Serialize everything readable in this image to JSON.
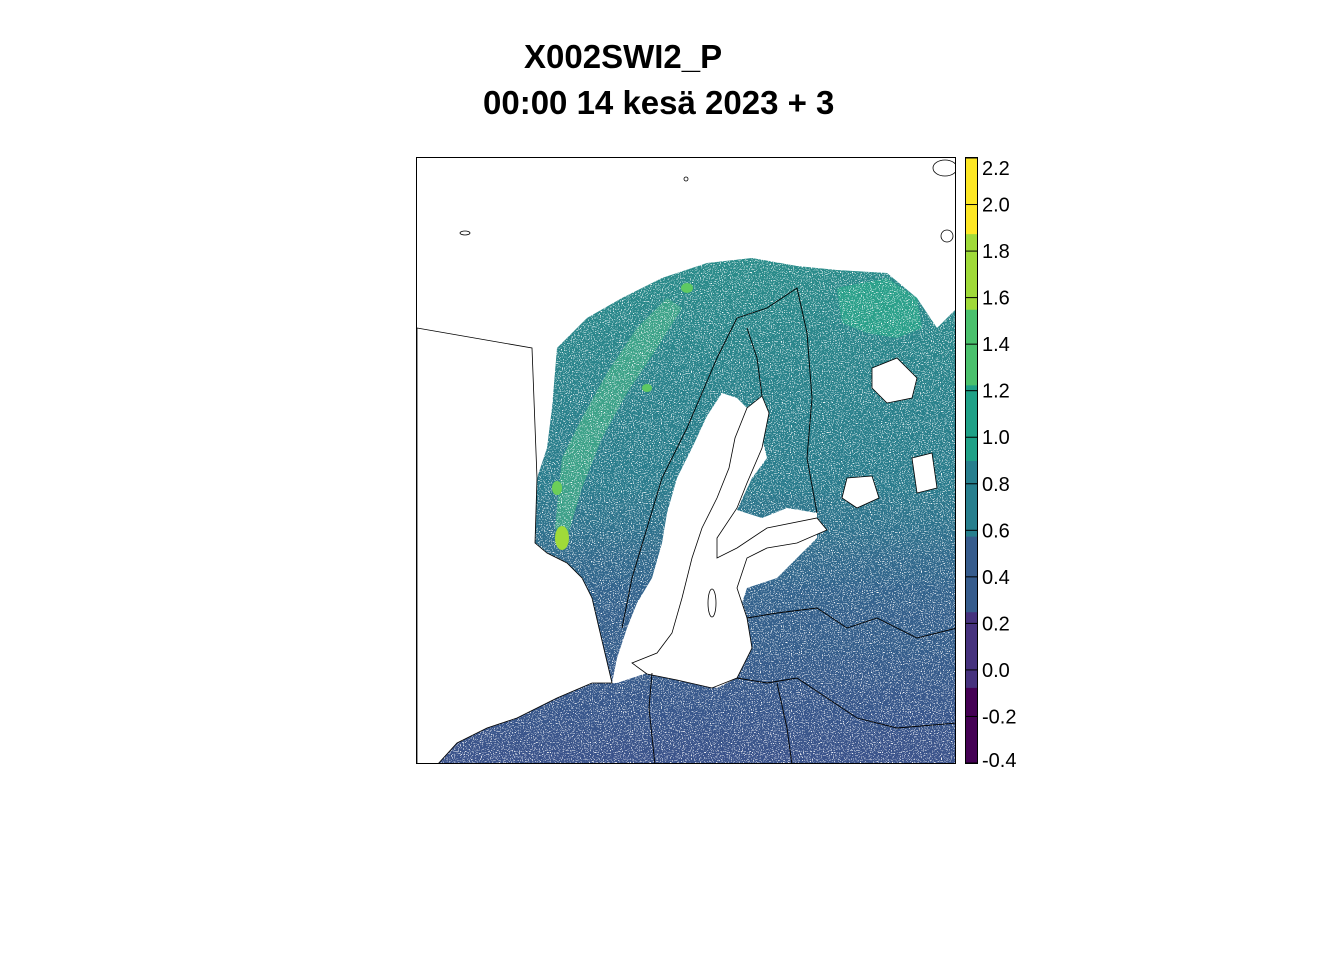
{
  "title": {
    "line1": "X002SWI2_P",
    "line2": "00:00 14 kesä 2023 + 3"
  },
  "legend": {
    "min": -0.4,
    "max": 2.2,
    "ticks": [
      "2.2",
      "2.0",
      "1.8",
      "1.6",
      "1.4",
      "1.2",
      "1.0",
      "0.8",
      "0.6",
      "0.4",
      "0.2",
      "0.0",
      "-0.2",
      "-0.4"
    ],
    "colors": [
      "#440154",
      "#46327e",
      "#365c8d",
      "#277f8e",
      "#1fa187",
      "#4ac16d",
      "#a0da39",
      "#fde725"
    ]
  },
  "map": {
    "region": "Fennoscandia and Baltic",
    "colors": {
      "land_north": "#2a8c8a",
      "land_mid": "#2f6f8e",
      "land_south": "#3b528b",
      "highland": "#5ec962",
      "peak": "#b8de29",
      "water": "#ffffff",
      "border": "#000000"
    }
  }
}
